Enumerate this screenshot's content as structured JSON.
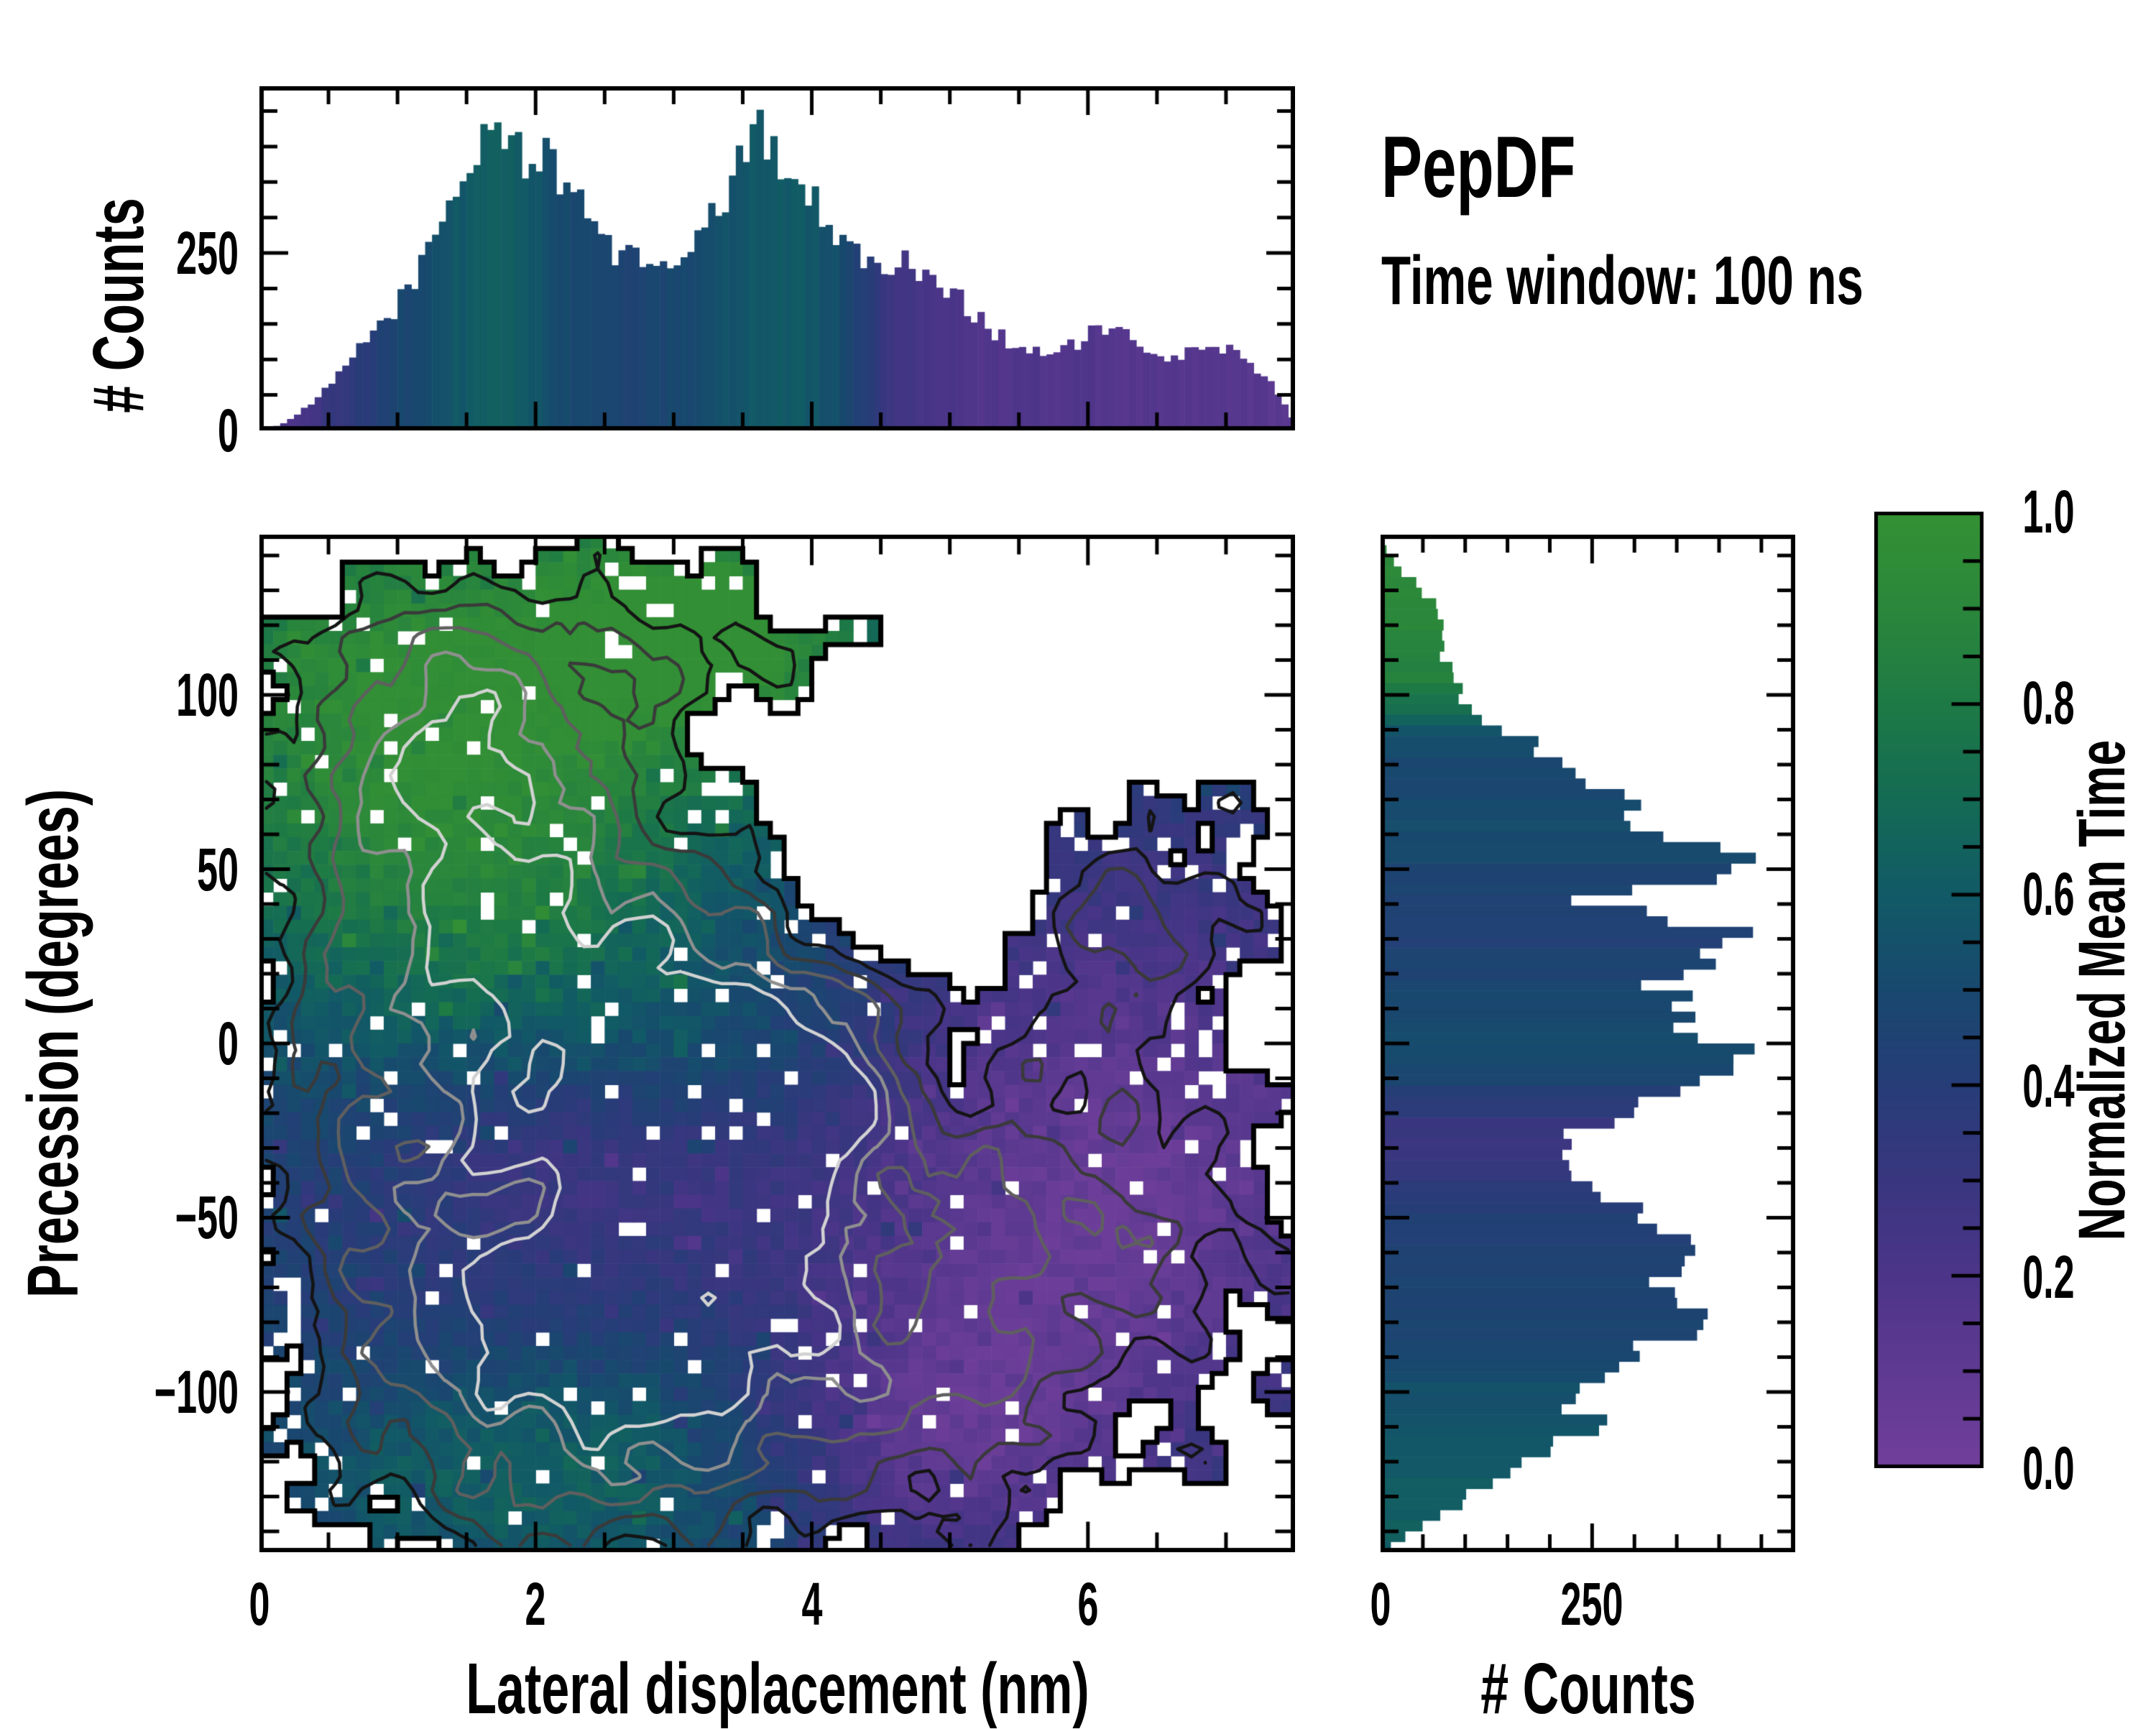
{
  "figure": {
    "title": "PepDF",
    "subtitle": "Time window: 100 ns",
    "background": "#ffffff"
  },
  "labels": {
    "top_ylabel": "# Counts",
    "main_xlabel": "Lateral displacement (nm)",
    "main_ylabel": "Precession (degrees)",
    "right_xlabel": "# Counts",
    "colorbar_label": "Normalized Mean Time"
  },
  "colormap": {
    "label": "Normalized Mean Time",
    "stops": [
      [
        0.0,
        "#713f9b"
      ],
      [
        0.1,
        "#5f3a92"
      ],
      [
        0.2,
        "#4c3589"
      ],
      [
        0.3,
        "#39367f"
      ],
      [
        0.4,
        "#273d78"
      ],
      [
        0.5,
        "#18486e"
      ],
      [
        0.6,
        "#115a66"
      ],
      [
        0.7,
        "#146b54"
      ],
      [
        0.8,
        "#1e7a45"
      ],
      [
        0.9,
        "#2a873b"
      ],
      [
        1.0,
        "#349133"
      ]
    ],
    "ticks": [
      {
        "v": 0.0,
        "label": "0.0"
      },
      {
        "v": 0.2,
        "label": "0.2"
      },
      {
        "v": 0.4,
        "label": "0.4"
      },
      {
        "v": 0.6,
        "label": "0.6"
      },
      {
        "v": 0.8,
        "label": "0.8"
      },
      {
        "v": 1.0,
        "label": "1.0"
      }
    ],
    "minor_step": 0.05,
    "lim": [
      0,
      1
    ]
  },
  "axes": {
    "main": {
      "xlabel": "Lateral displacement (nm)",
      "ylabel": "Precession (degrees)",
      "xlim": [
        0,
        7.5
      ],
      "ylim": [
        -146,
        146
      ],
      "xticks": [
        {
          "v": 0,
          "label": "0"
        },
        {
          "v": 2,
          "label": "2"
        },
        {
          "v": 4,
          "label": "4"
        },
        {
          "v": 6,
          "label": "6"
        }
      ],
      "xminor_step": 0.5,
      "yticks": [
        {
          "v": 100,
          "label": "100"
        },
        {
          "v": 50,
          "label": "50"
        },
        {
          "v": 0,
          "label": "0"
        },
        {
          "v": -50,
          "label": "−50"
        },
        {
          "v": -100,
          "label": "−100"
        }
      ],
      "yminor_step": 10
    },
    "top": {
      "ylabel": "# Counts",
      "ylim": [
        0,
        485
      ],
      "yticks": [
        {
          "v": 0,
          "label": "0"
        },
        {
          "v": 250,
          "label": "250"
        }
      ],
      "yminor_step": 50
    },
    "right": {
      "xlabel": "# Counts",
      "xlim": [
        0,
        490
      ],
      "xticks": [
        {
          "v": 0,
          "label": "0"
        },
        {
          "v": 250,
          "label": "250"
        }
      ],
      "xminor_step": 50
    }
  },
  "chart_data": [
    {
      "type": "bar",
      "role": "top-marginal-histogram",
      "title": "",
      "xlabel": "Lateral displacement (nm)",
      "ylabel": "# Counts",
      "xlim": [
        0,
        7.5
      ],
      "ylim": [
        0,
        485
      ],
      "bins": 150,
      "color_by": "normalized mean time (colormap)",
      "profile": [
        [
          0,
          2
        ],
        [
          0.15,
          8
        ],
        [
          0.3,
          25
        ],
        [
          0.5,
          60
        ],
        [
          0.65,
          95
        ],
        [
          0.8,
          135
        ],
        [
          0.95,
          165
        ],
        [
          1.1,
          205
        ],
        [
          1.25,
          265
        ],
        [
          1.4,
          320
        ],
        [
          1.5,
          365
        ],
        [
          1.6,
          410
        ],
        [
          1.7,
          432
        ],
        [
          1.8,
          415
        ],
        [
          1.9,
          385
        ],
        [
          2.0,
          398
        ],
        [
          2.1,
          372
        ],
        [
          2.2,
          345
        ],
        [
          2.35,
          322
        ],
        [
          2.5,
          275
        ],
        [
          2.6,
          248
        ],
        [
          2.75,
          238
        ],
        [
          2.9,
          246
        ],
        [
          3.0,
          230
        ],
        [
          3.1,
          242
        ],
        [
          3.2,
          272
        ],
        [
          3.35,
          318
        ],
        [
          3.5,
          388
        ],
        [
          3.6,
          420
        ],
        [
          3.7,
          408
        ],
        [
          3.8,
          382
        ],
        [
          3.9,
          345
        ],
        [
          4.0,
          322
        ],
        [
          4.1,
          300
        ],
        [
          4.2,
          282
        ],
        [
          4.3,
          255
        ],
        [
          4.4,
          238
        ],
        [
          4.55,
          228
        ],
        [
          4.7,
          238
        ],
        [
          4.85,
          218
        ],
        [
          5.0,
          198
        ],
        [
          5.15,
          172
        ],
        [
          5.3,
          142
        ],
        [
          5.45,
          122
        ],
        [
          5.6,
          112
        ],
        [
          5.75,
          108
        ],
        [
          5.9,
          120
        ],
        [
          6.05,
          140
        ],
        [
          6.2,
          138
        ],
        [
          6.35,
          125
        ],
        [
          6.5,
          108
        ],
        [
          6.6,
          98
        ],
        [
          6.75,
          110
        ],
        [
          6.9,
          122
        ],
        [
          7.05,
          112
        ],
        [
          7.2,
          92
        ],
        [
          7.3,
          72
        ],
        [
          7.4,
          42
        ],
        [
          7.5,
          10
        ]
      ],
      "color_profile": [
        [
          0,
          0.18
        ],
        [
          0.3,
          0.22
        ],
        [
          0.5,
          0.3
        ],
        [
          0.8,
          0.4
        ],
        [
          1.1,
          0.5
        ],
        [
          1.4,
          0.58
        ],
        [
          1.7,
          0.62
        ],
        [
          2.0,
          0.58
        ],
        [
          2.2,
          0.5
        ],
        [
          2.5,
          0.46
        ],
        [
          2.9,
          0.48
        ],
        [
          3.2,
          0.52
        ],
        [
          3.5,
          0.58
        ],
        [
          3.9,
          0.6
        ],
        [
          4.15,
          0.55
        ],
        [
          4.35,
          0.42
        ],
        [
          4.55,
          0.3
        ],
        [
          4.8,
          0.22
        ],
        [
          5.2,
          0.18
        ],
        [
          5.8,
          0.17
        ],
        [
          6.3,
          0.16
        ],
        [
          6.9,
          0.15
        ],
        [
          7.5,
          0.14
        ]
      ]
    },
    {
      "type": "heatmap",
      "role": "main-2d-histogram",
      "xlabel": "Lateral displacement (nm)",
      "ylabel": "Precession (degrees)",
      "value_label": "Normalized Mean Time",
      "xlim": [
        0,
        7.5
      ],
      "ylim": [
        -146,
        146
      ],
      "grid": {
        "cols": 75,
        "rows": 74
      },
      "mask_threshold": 0.22,
      "density_clusters": [
        {
          "x": 1.5,
          "y": 45,
          "sx": 1.05,
          "sy": 42,
          "a": 0.85
        },
        {
          "x": 3.6,
          "y": -8,
          "sx": 0.95,
          "sy": 38,
          "a": 1.0
        },
        {
          "x": 2.5,
          "y": -55,
          "sx": 1.2,
          "sy": 45,
          "a": 0.6
        },
        {
          "x": 2.3,
          "y": -108,
          "sx": 1.3,
          "sy": 34,
          "a": 0.62
        },
        {
          "x": 1.4,
          "y": 105,
          "sx": 0.8,
          "sy": 28,
          "a": 0.45
        },
        {
          "x": 3.4,
          "y": 118,
          "sx": 0.62,
          "sy": 18,
          "a": 0.32
        },
        {
          "x": 6.4,
          "y": 40,
          "sx": 0.95,
          "sy": 26,
          "a": 0.4
        },
        {
          "x": 6.2,
          "y": -50,
          "sx": 1.15,
          "sy": 42,
          "a": 0.45
        },
        {
          "x": 4.8,
          "y": -100,
          "sx": 0.85,
          "sy": 30,
          "a": 0.42
        },
        {
          "x": 0.9,
          "y": -40,
          "sx": 0.55,
          "sy": 28,
          "a": 0.32
        },
        {
          "x": 4.6,
          "y": 42,
          "sx": 0.6,
          "sy": 24,
          "a": -0.5
        },
        {
          "x": 5.0,
          "y": -5,
          "sx": 0.35,
          "sy": 14,
          "a": -0.2
        }
      ],
      "meantime_base": 0.44,
      "meantime_features": [
        {
          "x": 1.3,
          "y": 95,
          "sx": 1.7,
          "sy": 55,
          "a": 0.55
        },
        {
          "x": 3.4,
          "y": 120,
          "sx": 0.8,
          "sy": 25,
          "a": 0.4
        },
        {
          "x": 1.8,
          "y": 30,
          "sx": 0.9,
          "sy": 25,
          "a": 0.1
        },
        {
          "x": 3.6,
          "y": -5,
          "sx": 0.7,
          "sy": 18,
          "a": 0.08
        },
        {
          "x": 2.2,
          "y": -38,
          "sx": 1.0,
          "sy": 22,
          "a": -0.16
        },
        {
          "x": 1.6,
          "y": -85,
          "sx": 1.2,
          "sy": 18,
          "a": -0.08
        },
        {
          "x": 2.3,
          "y": -120,
          "sx": 1.6,
          "sy": 30,
          "a": 0.22
        },
        {
          "x": 6.2,
          "y": -40,
          "sx": 1.6,
          "sy": 55,
          "a": -0.38
        },
        {
          "x": 4.9,
          "y": -115,
          "sx": 1.0,
          "sy": 30,
          "a": -0.3
        },
        {
          "x": 6.6,
          "y": 45,
          "sx": 1.0,
          "sy": 28,
          "a": -0.06
        }
      ],
      "contour_levels": [
        0.34,
        0.48,
        0.62,
        0.76,
        0.88
      ],
      "contour_colors": [
        "#141414",
        "#3a3a3a",
        "#5f5f5f",
        "#8f8f8f",
        "#d2d2d2"
      ],
      "boundary_color": "#000000"
    },
    {
      "type": "bar",
      "orientation": "horizontal",
      "role": "right-marginal-histogram",
      "xlabel": "# Counts",
      "ylabel": "Precession (degrees)",
      "xlim": [
        0,
        490
      ],
      "ylim": [
        -146,
        146
      ],
      "bins": 96,
      "color_by": "normalized mean time (colormap)",
      "profile": [
        [
          146,
          0
        ],
        [
          141,
          8
        ],
        [
          136,
          22
        ],
        [
          131,
          45
        ],
        [
          126,
          65
        ],
        [
          121,
          72
        ],
        [
          116,
          68
        ],
        [
          111,
          76
        ],
        [
          106,
          90
        ],
        [
          101,
          102
        ],
        [
          97,
          98
        ],
        [
          93,
          125
        ],
        [
          88,
          165
        ],
        [
          83,
          195
        ],
        [
          78,
          230
        ],
        [
          74,
          262
        ],
        [
          70,
          305
        ],
        [
          67,
          280
        ],
        [
          63,
          295
        ],
        [
          59,
          340
        ],
        [
          55,
          418
        ],
        [
          51,
          405
        ],
        [
          48,
          392
        ],
        [
          44,
          305
        ],
        [
          41,
          242
        ],
        [
          37,
          310
        ],
        [
          33,
          428
        ],
        [
          30,
          405
        ],
        [
          26,
          392
        ],
        [
          22,
          358
        ],
        [
          18,
          332
        ],
        [
          13,
          342
        ],
        [
          9,
          360
        ],
        [
          4,
          382
        ],
        [
          0,
          398
        ],
        [
          -4,
          432
        ],
        [
          -8,
          395
        ],
        [
          -12,
          372
        ],
        [
          -16,
          335
        ],
        [
          -20,
          302
        ],
        [
          -24,
          248
        ],
        [
          -28,
          215
        ],
        [
          -32,
          228
        ],
        [
          -36,
          242
        ],
        [
          -40,
          252
        ],
        [
          -44,
          268
        ],
        [
          -48,
          298
        ],
        [
          -52,
          332
        ],
        [
          -56,
          362
        ],
        [
          -60,
          385
        ],
        [
          -64,
          358
        ],
        [
          -68,
          338
        ],
        [
          -72,
          322
        ],
        [
          -76,
          355
        ],
        [
          -80,
          398
        ],
        [
          -84,
          345
        ],
        [
          -88,
          318
        ],
        [
          -92,
          302
        ],
        [
          -96,
          272
        ],
        [
          -100,
          248
        ],
        [
          -104,
          228
        ],
        [
          -108,
          248
        ],
        [
          -112,
          238
        ],
        [
          -116,
          205
        ],
        [
          -120,
          175
        ],
        [
          -124,
          148
        ],
        [
          -128,
          118
        ],
        [
          -132,
          92
        ],
        [
          -136,
          66
        ],
        [
          -140,
          40
        ],
        [
          -143,
          20
        ],
        [
          -146,
          6
        ]
      ],
      "color_profile": [
        [
          146,
          0.92
        ],
        [
          120,
          0.9
        ],
        [
          105,
          0.85
        ],
        [
          95,
          0.7
        ],
        [
          88,
          0.55
        ],
        [
          80,
          0.48
        ],
        [
          70,
          0.5
        ],
        [
          60,
          0.52
        ],
        [
          50,
          0.48
        ],
        [
          40,
          0.45
        ],
        [
          30,
          0.44
        ],
        [
          20,
          0.46
        ],
        [
          10,
          0.5
        ],
        [
          0,
          0.52
        ],
        [
          -8,
          0.5
        ],
        [
          -15,
          0.42
        ],
        [
          -22,
          0.32
        ],
        [
          -28,
          0.28
        ],
        [
          -35,
          0.32
        ],
        [
          -45,
          0.4
        ],
        [
          -55,
          0.44
        ],
        [
          -65,
          0.45
        ],
        [
          -75,
          0.46
        ],
        [
          -85,
          0.48
        ],
        [
          -95,
          0.52
        ],
        [
          -105,
          0.56
        ],
        [
          -115,
          0.58
        ],
        [
          -125,
          0.6
        ],
        [
          -135,
          0.62
        ],
        [
          -146,
          0.62
        ]
      ]
    }
  ]
}
